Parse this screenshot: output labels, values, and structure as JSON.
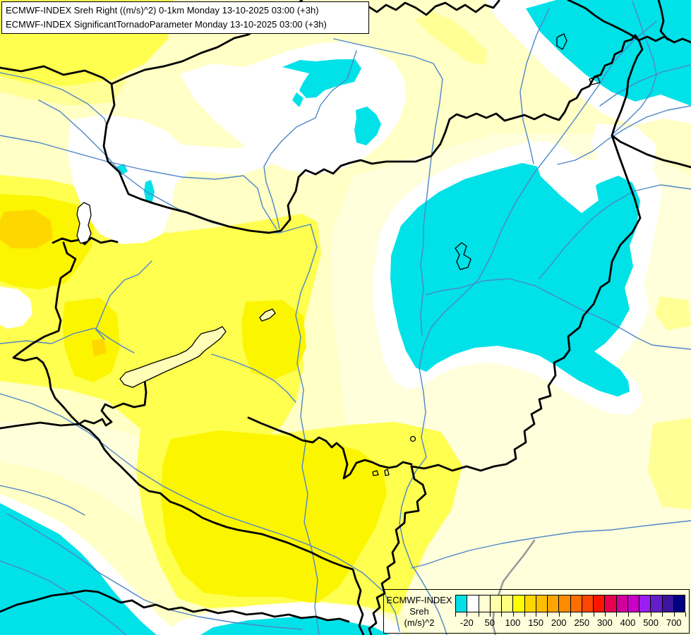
{
  "title_box": {
    "line1": "ECMWF-INDEX Sreh Right ((m/s)^2) 0-1km Monday 13-10-2025 03:00 (+3h)",
    "line2": "ECMWF-INDEX SignificantTornadoParameter Monday 13-10-2025 03:00 (+3h)"
  },
  "legend": {
    "product": "ECMWF-INDEX",
    "parameter": "Sreh",
    "unit": "(m/s)^2",
    "tick_labels": [
      "-20",
      "50",
      "100",
      "150",
      "200",
      "250",
      "300",
      "400",
      "500",
      "700"
    ],
    "cell_colors": [
      "#00e0e6",
      "#ffffff",
      "#ffffd2",
      "#ffffaa",
      "#ffff7d",
      "#ffff00",
      "#ffd700",
      "#ffbe00",
      "#ffa500",
      "#ff8c00",
      "#ff6e00",
      "#ff4600",
      "#ff1400",
      "#e80050",
      "#d2009b",
      "#c800c8",
      "#9b1ef0",
      "#641ec8",
      "#3c14a0",
      "#000082"
    ]
  },
  "palette": {
    "cyan": "#00e1e8",
    "white": "#ffffff",
    "cream": "#ffffdc",
    "pale": "#ffffc6",
    "mid": "#ffff96",
    "yellow": "#ffff4f",
    "bright": "#fbf500",
    "gold": "#ffd700",
    "lake": "#ffffb8",
    "river": "#4e86c8",
    "border": "#000000",
    "gray_border": "#999999"
  }
}
